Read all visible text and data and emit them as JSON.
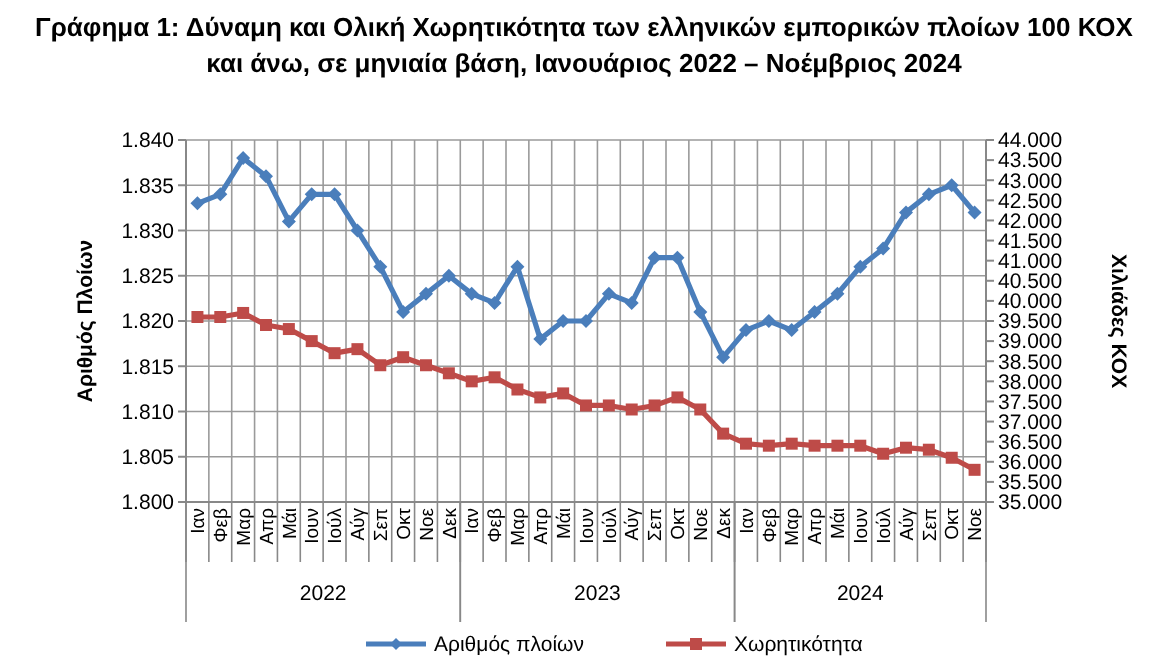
{
  "chart_data": {
    "type": "line",
    "title": "Γράφημα 1: Δύναμη και Ολική Χωρητικότητα των ελληνικών εμπορικών πλοίων 100 ΚΟΧ\nκαι άνω, σε μηνιαία βάση, Ιανουάριος 2022 – Νοέμβριος 2024",
    "ylabel": "Αριθμός Πλοίων",
    "y2label": "Χιλιάδες ΚΟΧ",
    "categories": [
      "Ιαν",
      "Φεβ",
      "Μαρ",
      "Απρ",
      "Μάι",
      "Ιουν",
      "Ιούλ",
      "Αύγ",
      "Σεπ",
      "Οκτ",
      "Νοε",
      "Δεκ",
      "Ιαν",
      "Φεβ",
      "Μαρ",
      "Απρ",
      "Μάι",
      "Ιουν",
      "Ιούλ",
      "Αύγ",
      "Σεπ",
      "Οκτ",
      "Νοε",
      "Δεκ",
      "Ιαν",
      "Φεβ",
      "Μαρ",
      "Απρ",
      "Μάι",
      "Ιουν",
      "Ιούλ",
      "Αύγ",
      "Σεπ",
      "Οκτ",
      "Νοε"
    ],
    "annotations": [
      "2022",
      "2023",
      "2024"
    ],
    "series": [
      {
        "name": "Αριθμός πλοίων",
        "color": "#4a7ebb",
        "marker": "diamond",
        "values": [
          1833,
          1834,
          1838,
          1836,
          1831,
          1834,
          1834,
          1830,
          1826,
          1821,
          1823,
          1825,
          1823,
          1822,
          1826,
          1818,
          1820,
          1820,
          1823,
          1822,
          1827,
          1827,
          1821,
          1816,
          1819,
          1820,
          1819,
          1821,
          1823,
          1826,
          1828,
          1832,
          1834,
          1835,
          1832
        ]
      },
      {
        "name": "Χωρητικότητα",
        "color": "#be4b48",
        "marker": "square",
        "axis": "y2",
        "values": [
          39600,
          39600,
          39700,
          39400,
          39300,
          39000,
          38700,
          38800,
          38400,
          38600,
          38400,
          38200,
          38000,
          38100,
          37800,
          37600,
          37700,
          37400,
          37400,
          37300,
          37400,
          37600,
          37300,
          36700,
          36450,
          36400,
          36450,
          36400,
          36400,
          36400,
          36200,
          36350,
          36300,
          36100,
          35800
        ]
      }
    ],
    "ylim": [
      1800,
      1840
    ],
    "yticks": [
      {
        "value": 1800,
        "label": "1.800"
      },
      {
        "value": 1805,
        "label": "1.805"
      },
      {
        "value": 1810,
        "label": "1.810"
      },
      {
        "value": 1815,
        "label": "1.815"
      },
      {
        "value": 1820,
        "label": "1.820"
      },
      {
        "value": 1825,
        "label": "1.825"
      },
      {
        "value": 1830,
        "label": "1.830"
      },
      {
        "value": 1835,
        "label": "1.835"
      },
      {
        "value": 1840,
        "label": "1.840"
      }
    ],
    "y2lim": [
      35000,
      44000
    ],
    "y2ticks": [
      {
        "value": 35000,
        "label": "35.000"
      },
      {
        "value": 35500,
        "label": "35.500"
      },
      {
        "value": 36000,
        "label": "36.000"
      },
      {
        "value": 36500,
        "label": "36.500"
      },
      {
        "value": 37000,
        "label": "37.000"
      },
      {
        "value": 37500,
        "label": "37.500"
      },
      {
        "value": 38000,
        "label": "38.000"
      },
      {
        "value": 38500,
        "label": "38.500"
      },
      {
        "value": 39000,
        "label": "39.000"
      },
      {
        "value": 39500,
        "label": "39.500"
      },
      {
        "value": 40000,
        "label": "40.000"
      },
      {
        "value": 40500,
        "label": "40.500"
      },
      {
        "value": 41000,
        "label": "41.000"
      },
      {
        "value": 41500,
        "label": "41.500"
      },
      {
        "value": 42000,
        "label": "42.000"
      },
      {
        "value": 42500,
        "label": "42.500"
      },
      {
        "value": 43000,
        "label": "43.000"
      },
      {
        "value": 43500,
        "label": "43.500"
      },
      {
        "value": 44000,
        "label": "44.000"
      }
    ],
    "grid": true,
    "legend": "bottom",
    "line_style": "solid"
  }
}
